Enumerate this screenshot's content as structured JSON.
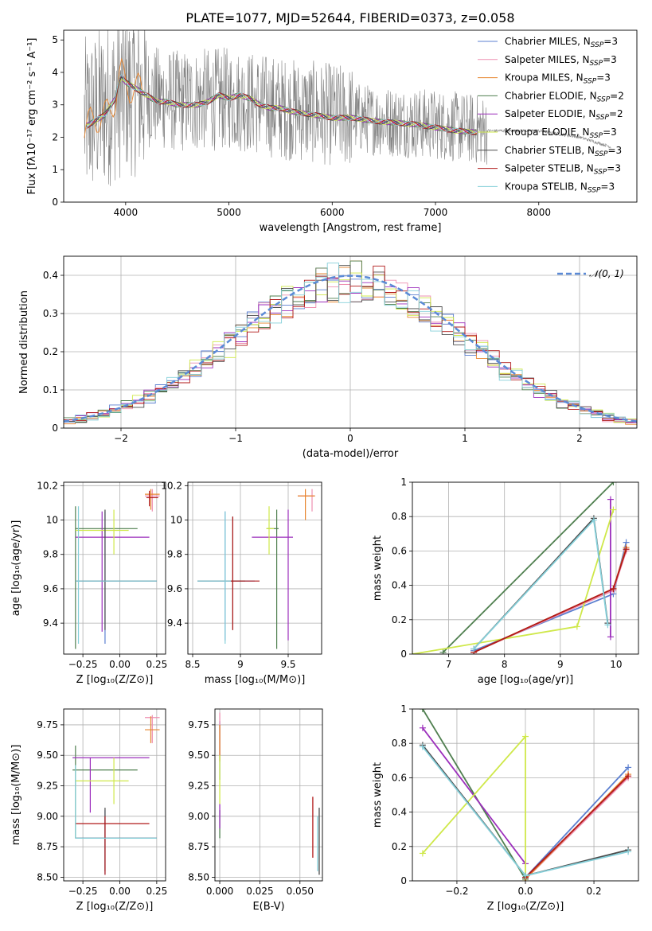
{
  "title": "PLATE=1077, MJD=52644, FIBERID=0373, z=0.058",
  "colors": {
    "data": "#808080",
    "models": [
      "#5b7fd0",
      "#ee8fb0",
      "#e7862f",
      "#4f7f4f",
      "#9c2fbc",
      "#cfe84a",
      "#4a4a4a",
      "#b11a1a",
      "#86d0da"
    ]
  },
  "legend_entries": [
    {
      "text": "Chabrier MILES, N",
      "sub": "SSP",
      "suffix": "=3"
    },
    {
      "text": "Salpeter MILES, N",
      "sub": "SSP",
      "suffix": "=3"
    },
    {
      "text": "Kroupa MILES, N",
      "sub": "SSP",
      "suffix": "=3"
    },
    {
      "text": "Chabrier ELODIE, N",
      "sub": "SSP",
      "suffix": "=2"
    },
    {
      "text": "Salpeter ELODIE, N",
      "sub": "SSP",
      "suffix": "=2"
    },
    {
      "text": "Kroupa ELODIE, N",
      "sub": "SSP",
      "suffix": "=3"
    },
    {
      "text": "Chabrier STELIB, N",
      "sub": "SSP",
      "suffix": "=3"
    },
    {
      "text": "Salpeter STELIB, N",
      "sub": "SSP",
      "suffix": "=3"
    },
    {
      "text": "Kroupa STELIB, N",
      "sub": "SSP",
      "suffix": "=3"
    }
  ],
  "chart_data": [
    {
      "id": "spectrum",
      "type": "line",
      "xlabel": "wavelength [Angstrom, rest frame]",
      "ylabel": "Flux [fλ10⁻¹⁷ erg cm⁻² s⁻¹ A⁻¹]",
      "xlim": [
        3400,
        8950
      ],
      "ylim": [
        0,
        5.3
      ],
      "xticks": [
        4000,
        5000,
        6000,
        7000,
        8000
      ],
      "yticks": [
        0,
        1,
        2,
        3,
        4,
        5
      ],
      "model_continuum": {
        "x": [
          3600,
          3700,
          3800,
          3900,
          3950,
          4000,
          4050,
          4100,
          4200,
          4300,
          4400,
          4500,
          4600,
          4700,
          4800,
          4900,
          5000,
          5100,
          5200,
          5300,
          5400,
          5500,
          5600,
          5800,
          6000,
          6200,
          6400,
          6600,
          6800,
          7000,
          7200,
          7400
        ],
        "y": [
          2.3,
          2.5,
          2.7,
          3.2,
          3.9,
          3.7,
          3.6,
          3.5,
          3.3,
          3.1,
          3.1,
          3.0,
          3.0,
          3.0,
          3.1,
          3.3,
          3.2,
          3.3,
          3.2,
          3.0,
          2.9,
          2.9,
          2.8,
          2.7,
          2.6,
          2.6,
          2.5,
          2.45,
          2.4,
          2.3,
          2.2,
          2.15
        ]
      },
      "data_continuum": {
        "x": [
          3600,
          4000,
          4500,
          5000,
          5500,
          6000,
          6500,
          7000,
          7500,
          8000,
          8400,
          8700
        ],
        "y": [
          2.5,
          3.4,
          3.1,
          3.2,
          2.9,
          2.7,
          2.5,
          2.4,
          2.2,
          2.2,
          2.0,
          1.7
        ]
      }
    },
    {
      "id": "residuals",
      "type": "line",
      "xlabel": "(data-model)/error",
      "ylabel": "Normed distribution",
      "xlim": [
        -2.5,
        2.5
      ],
      "ylim": [
        0,
        0.45
      ],
      "xticks": [
        -2,
        -1,
        0,
        1,
        2
      ],
      "yticks": [
        0.0,
        0.1,
        0.2,
        0.3,
        0.4
      ],
      "legend": "𝒩(0, 1)",
      "gaussian": {
        "mu": 0,
        "sigma": 1
      },
      "bin_width": 0.1
    },
    {
      "id": "age-vs-z",
      "type": "scatter",
      "xlabel": "Z [log₁₀(Z/Z⊙)]",
      "ylabel": "age  [log₁₀(age/yr)]",
      "xlim": [
        -0.38,
        0.31
      ],
      "ylim": [
        9.22,
        10.22
      ],
      "xticks": [
        -0.25,
        0.0,
        0.25
      ],
      "xticklabels": [
        "−0.25",
        "0.00",
        "0.25"
      ],
      "yticks": [
        9.4,
        9.6,
        9.8,
        10.0,
        10.2
      ]
    },
    {
      "id": "age-vs-mass",
      "type": "scatter",
      "ylabel": "",
      "xlabel": "mass [log₁₀(M/M⊙)]",
      "xlim": [
        8.45,
        9.85
      ],
      "ylim": [
        9.22,
        10.22
      ],
      "xticks": [
        8.5,
        9.0,
        9.5
      ],
      "yticks": [
        9.4,
        9.6,
        9.8,
        10.0,
        10.2
      ]
    },
    {
      "id": "mass-weight-vs-age",
      "type": "line",
      "xlabel": "age  [log₁₀(age/yr)]",
      "ylabel": "mass weight",
      "xlim": [
        6.35,
        10.4
      ],
      "ylim": [
        0,
        1.0
      ],
      "xticks": [
        7,
        8,
        9,
        10
      ],
      "yticks": [
        0.0,
        0.2,
        0.4,
        0.6,
        0.8,
        1.0
      ],
      "series": [
        {
          "x": [
            7.45,
            9.95,
            10.18
          ],
          "y": [
            0.02,
            0.35,
            0.65
          ]
        },
        {
          "x": [
            7.45,
            9.95,
            10.18
          ],
          "y": [
            0.01,
            0.37,
            0.6
          ]
        },
        {
          "x": [
            7.45,
            9.95,
            10.18
          ],
          "y": [
            0.01,
            0.38,
            0.62
          ]
        },
        {
          "x": [
            6.9,
            9.95
          ],
          "y": [
            0.01,
            1.0
          ]
        },
        {
          "x": [
            9.9,
            9.9
          ],
          "y": [
            0.1,
            0.9
          ]
        },
        {
          "x": [
            6.35,
            9.3,
            9.95
          ],
          "y": [
            0.0,
            0.16,
            0.84
          ]
        },
        {
          "x": [
            7.45,
            9.6,
            9.85
          ],
          "y": [
            0.03,
            0.79,
            0.18
          ]
        },
        {
          "x": [
            7.45,
            9.95,
            10.18
          ],
          "y": [
            0.01,
            0.38,
            0.61
          ]
        },
        {
          "x": [
            7.45,
            9.6,
            9.85
          ],
          "y": [
            0.03,
            0.78,
            0.17
          ]
        }
      ]
    },
    {
      "id": "mass-vs-z",
      "type": "scatter",
      "xlabel": "Z [log₁₀(Z/Z⊙)]",
      "ylabel": "mass [log₁₀(M/M⊙)]",
      "xlim": [
        -0.38,
        0.31
      ],
      "ylim": [
        8.47,
        9.88
      ],
      "xticks": [
        -0.25,
        0.0,
        0.25
      ],
      "xticklabels": [
        "−0.25",
        "0.00",
        "0.25"
      ],
      "yticks": [
        8.5,
        8.75,
        9.0,
        9.25,
        9.5,
        9.75
      ],
      "yticklabels": [
        "8.50",
        "8.75",
        "9.00",
        "9.25",
        "9.50",
        "9.75"
      ]
    },
    {
      "id": "mass-vs-ebv",
      "type": "scatter",
      "ylabel": "",
      "xlabel": "E(B-V)",
      "xlim": [
        -0.003,
        0.064
      ],
      "ylim": [
        8.47,
        9.88
      ],
      "xticks": [
        0.0,
        0.025,
        0.05
      ],
      "xticklabels": [
        "0.000",
        "0.025",
        "0.050"
      ],
      "yticks": [
        8.5,
        8.75,
        9.0,
        9.25,
        9.5,
        9.75
      ],
      "yticklabels": [
        "8.50",
        "8.75",
        "9.00",
        "9.25",
        "9.50",
        "9.75"
      ]
    },
    {
      "id": "mass-weight-vs-z",
      "type": "line",
      "xlabel": "Z [log₁₀(Z/Z⊙)]",
      "ylabel": "mass weight",
      "xlim": [
        -0.33,
        0.33
      ],
      "ylim": [
        0,
        1.0
      ],
      "xticks": [
        -0.2,
        0.0,
        0.2
      ],
      "xticklabels": [
        "−0.2",
        "0.0",
        "0.2"
      ],
      "yticks": [
        0.0,
        0.2,
        0.4,
        0.6,
        0.8,
        1.0
      ],
      "series": [
        {
          "x": [
            0.0,
            0.3
          ],
          "y": [
            0.02,
            0.66
          ]
        },
        {
          "x": [
            0.0,
            0.3
          ],
          "y": [
            0.01,
            0.6
          ]
        },
        {
          "x": [
            0.0,
            0.3
          ],
          "y": [
            0.01,
            0.62
          ]
        },
        {
          "x": [
            -0.3,
            0.0
          ],
          "y": [
            1.0,
            0.01
          ]
        },
        {
          "x": [
            -0.3,
            0.0
          ],
          "y": [
            0.89,
            0.1
          ]
        },
        {
          "x": [
            -0.3,
            0.0,
            0.0
          ],
          "y": [
            0.16,
            0.84,
            0.0
          ]
        },
        {
          "x": [
            -0.3,
            0.0,
            0.3
          ],
          "y": [
            0.79,
            0.03,
            0.18
          ]
        },
        {
          "x": [
            0.0,
            0.3
          ],
          "y": [
            0.02,
            0.61
          ]
        },
        {
          "x": [
            -0.3,
            0.0,
            0.3
          ],
          "y": [
            0.78,
            0.03,
            0.17
          ]
        }
      ]
    }
  ]
}
